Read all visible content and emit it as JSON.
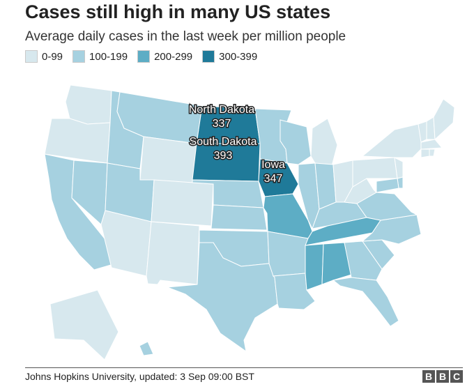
{
  "title": "Cases still high in many US states",
  "subtitle": "Average daily cases in the last week per million people",
  "legend": [
    {
      "label": "0-99",
      "color": "#d7e8ee"
    },
    {
      "label": "100-199",
      "color": "#a6d1e0"
    },
    {
      "label": "200-299",
      "color": "#5dadc5"
    },
    {
      "label": "300-399",
      "color": "#1f7a99"
    }
  ],
  "callouts": [
    {
      "state": "North Dakota",
      "value": "337"
    },
    {
      "state": "South Dakota",
      "value": "393"
    },
    {
      "state": "Iowa",
      "value": "347"
    }
  ],
  "source": "Johns Hopkins University, updated: 3 Sep 09:00 BST",
  "logo": [
    "B",
    "B",
    "C"
  ],
  "chart_data": {
    "type": "choropleth",
    "bins": [
      "0-99",
      "100-199",
      "200-299",
      "300-399"
    ],
    "states": {
      "WA": "0-99",
      "OR": "0-99",
      "CA": "100-199",
      "NV": "100-199",
      "ID": "100-199",
      "MT": "100-199",
      "WY": "0-99",
      "UT": "100-199",
      "AZ": "0-99",
      "CO": "0-99",
      "NM": "0-99",
      "ND": "300-399",
      "SD": "300-399",
      "NE": "100-199",
      "KS": "100-199",
      "OK": "100-199",
      "TX": "100-199",
      "MN": "100-199",
      "IA": "300-399",
      "MO": "200-299",
      "AR": "100-199",
      "LA": "100-199",
      "WI": "100-199",
      "IL": "100-199",
      "MI": "0-99",
      "IN": "100-199",
      "OH": "0-99",
      "KY": "100-199",
      "TN": "200-299",
      "MS": "200-299",
      "AL": "200-299",
      "GA": "100-199",
      "FL": "100-199",
      "SC": "100-199",
      "NC": "100-199",
      "VA": "100-199",
      "WV": "0-99",
      "PA": "0-99",
      "NY": "0-99",
      "VT": "0-99",
      "NH": "0-99",
      "ME": "0-99",
      "MA": "0-99",
      "CT": "0-99",
      "RI": "0-99",
      "NJ": "0-99",
      "DE": "100-199",
      "MD": "100-199",
      "AK": "0-99",
      "HI": "100-199"
    }
  }
}
